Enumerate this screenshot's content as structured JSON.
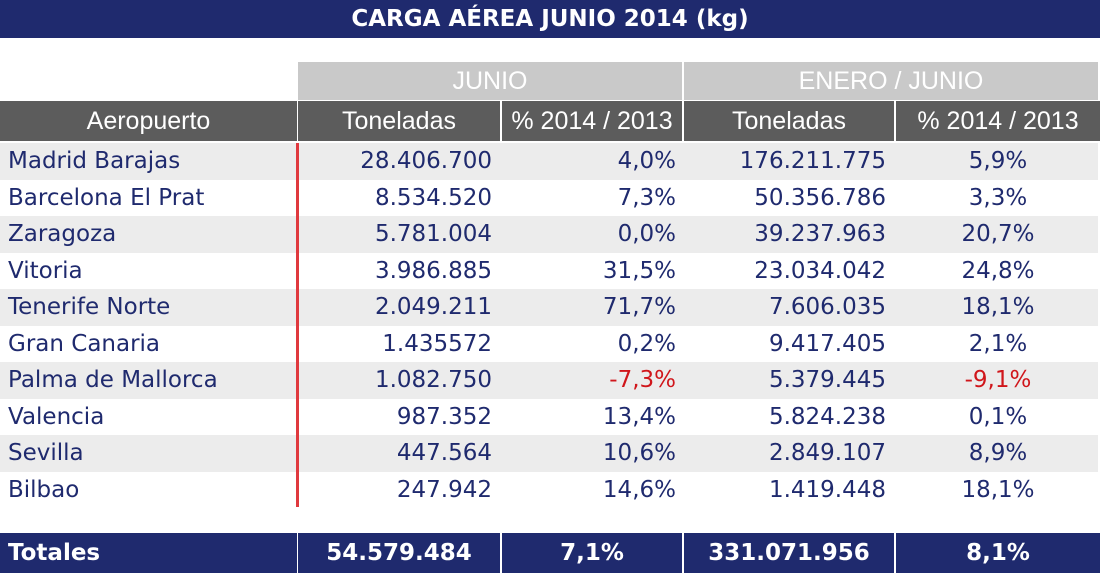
{
  "title": "CARGA AÉREA JUNIO 2014 (kg)",
  "groups": [
    "JUNIO",
    "ENERO / JUNIO"
  ],
  "columns": [
    "Aeropuerto",
    "Toneladas",
    "% 2014 / 2013",
    "Toneladas",
    "% 2014 / 2013"
  ],
  "rows": [
    [
      "Madrid Barajas",
      "28.406.700",
      "4,0%",
      "176.211.775",
      "5,9%"
    ],
    [
      "Barcelona El Prat",
      "8.534.520",
      "7,3%",
      "50.356.786",
      "3,3%"
    ],
    [
      "Zaragoza",
      "5.781.004",
      "0,0%",
      "39.237.963",
      "20,7%"
    ],
    [
      "Vitoria",
      "3.986.885",
      "31,5%",
      "23.034.042",
      "24,8%"
    ],
    [
      "Tenerife Norte",
      "2.049.211",
      "71,7%",
      "7.606.035",
      "18,1%"
    ],
    [
      "Gran Canaria",
      "1.435572",
      "0,2%",
      "9.417.405",
      "2,1%"
    ],
    [
      "Palma de Mallorca",
      "1.082.750",
      "-7,3%",
      "5.379.445",
      "-9,1%"
    ],
    [
      "Valencia",
      "987.352",
      "13,4%",
      "5.824.238",
      "0,1%"
    ],
    [
      "Sevilla",
      "447.564",
      "10,6%",
      "2.849.107",
      "8,9%"
    ],
    [
      "Bilbao",
      "247.942",
      "14,6%",
      "1.419.448",
      "18,1%"
    ]
  ],
  "totals": [
    "Totales",
    "54.579.484",
    "7,1%",
    "331.071.956",
    "8,1%"
  ]
}
